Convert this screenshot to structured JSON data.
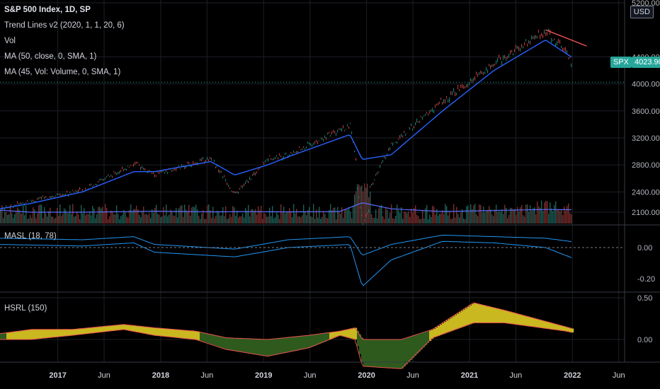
{
  "legend": {
    "symbol": "S&P 500 Index, 1D, SP",
    "trend": "Trend Lines v2 (2020, 1, 1, 20, 6)",
    "vol": "Vol",
    "ma_close": "MA (50, close, 0, SMA, 1)",
    "ma_vol": "MA (45, Vol: Volume, 0, SMA, 1)",
    "masl": "MASL (18, 78)",
    "hsrl": "HSRL (150)"
  },
  "currency_button": "USD",
  "price_tag": {
    "symbol": "SPX",
    "value": "4023.90"
  },
  "colors": {
    "background": "#000000",
    "grid": "#1c1f26",
    "ma_line": "#2962ff",
    "masl_line": "#2196f3",
    "trend_line": "#ef5350",
    "candle_up": "#26a69a",
    "candle_down": "#ef5350",
    "hsrl_positive": "#c9b81f",
    "hsrl_negative": "#2e5a1e",
    "hsrl_edge": "#ef5350"
  },
  "chart_data": [
    {
      "type": "line",
      "name": "main-price",
      "title": "S&P 500 Index, 1D, SP",
      "x_ticks": [
        "2017",
        "Jun",
        "2018",
        "Jun",
        "2019",
        "Jun",
        "2020",
        "Jun",
        "2021",
        "Jun",
        "2022",
        "Jun"
      ],
      "y_ticks": [
        "5200.00",
        "4400.00",
        "4000.00",
        "3600.00",
        "3200.00",
        "2800.00",
        "2400.00",
        "2100.00"
      ],
      "x": [
        2016.7,
        2017.0,
        2017.5,
        2018.0,
        2018.2,
        2018.75,
        2018.98,
        2019.3,
        2019.5,
        2020.1,
        2020.22,
        2020.5,
        2021.0,
        2021.5,
        2022.0,
        2022.2,
        2022.35
      ],
      "close": [
        2150,
        2270,
        2430,
        2820,
        2650,
        2900,
        2350,
        2900,
        2950,
        3380,
        2240,
        3100,
        3750,
        4300,
        4790,
        4450,
        4023.9
      ],
      "ma50": [
        2150,
        2230,
        2400,
        2700,
        2700,
        2850,
        2650,
        2800,
        2920,
        3250,
        2880,
        2950,
        3600,
        4200,
        4650,
        4450,
        4300
      ],
      "trend_line": {
        "start": [
          2022.0,
          4800
        ],
        "end": [
          2022.4,
          4560
        ]
      },
      "last_price": 4023.9
    },
    {
      "type": "bar",
      "name": "volume",
      "series": [
        {
          "name": "Vol",
          "description": "daily volume bars"
        }
      ],
      "ma45_level": [
        1.0,
        1.0,
        1.0,
        1.1,
        1.0,
        1.0,
        1.6,
        1.2,
        1.0,
        1.0,
        1.0,
        1.05,
        1.15
      ]
    },
    {
      "type": "line",
      "name": "masl",
      "title": "MASL (18, 78)",
      "y_ticks": [
        "0.00",
        "-0.20"
      ],
      "x": [
        2016.7,
        2017.5,
        2018.0,
        2018.2,
        2018.98,
        2019.5,
        2020.1,
        2020.22,
        2020.5,
        2021.0,
        2021.5,
        2022.0,
        2022.35
      ],
      "line1": [
        0.06,
        0.05,
        0.07,
        0.02,
        -0.01,
        0.05,
        0.07,
        -0.05,
        0.02,
        0.08,
        0.07,
        0.06,
        0.03
      ],
      "line2": [
        0.02,
        0.01,
        0.03,
        -0.03,
        -0.06,
        0.0,
        0.02,
        -0.25,
        -0.08,
        0.04,
        0.03,
        0.0,
        -0.09
      ]
    },
    {
      "type": "area",
      "name": "hsrl",
      "title": "HSRL (150)",
      "y_ticks": [
        "0.50",
        "0.00"
      ],
      "x": [
        2016.7,
        2017.0,
        2017.4,
        2017.9,
        2018.2,
        2018.6,
        2018.9,
        2019.3,
        2019.7,
        2020.0,
        2020.15,
        2020.22,
        2020.6,
        2020.9,
        2021.3,
        2021.6,
        2021.9,
        2022.2,
        2022.4
      ],
      "upper": [
        0.07,
        0.12,
        0.12,
        0.18,
        0.14,
        0.1,
        0.02,
        0.0,
        0.05,
        0.1,
        0.14,
        0.0,
        0.0,
        0.12,
        0.44,
        0.35,
        0.25,
        0.15,
        0.08
      ],
      "lower": [
        0.0,
        0.0,
        0.05,
        0.12,
        0.05,
        0.0,
        -0.12,
        -0.2,
        -0.1,
        0.05,
        0.0,
        -0.32,
        -0.35,
        0.02,
        0.2,
        0.2,
        0.15,
        0.1,
        0.04
      ]
    }
  ]
}
